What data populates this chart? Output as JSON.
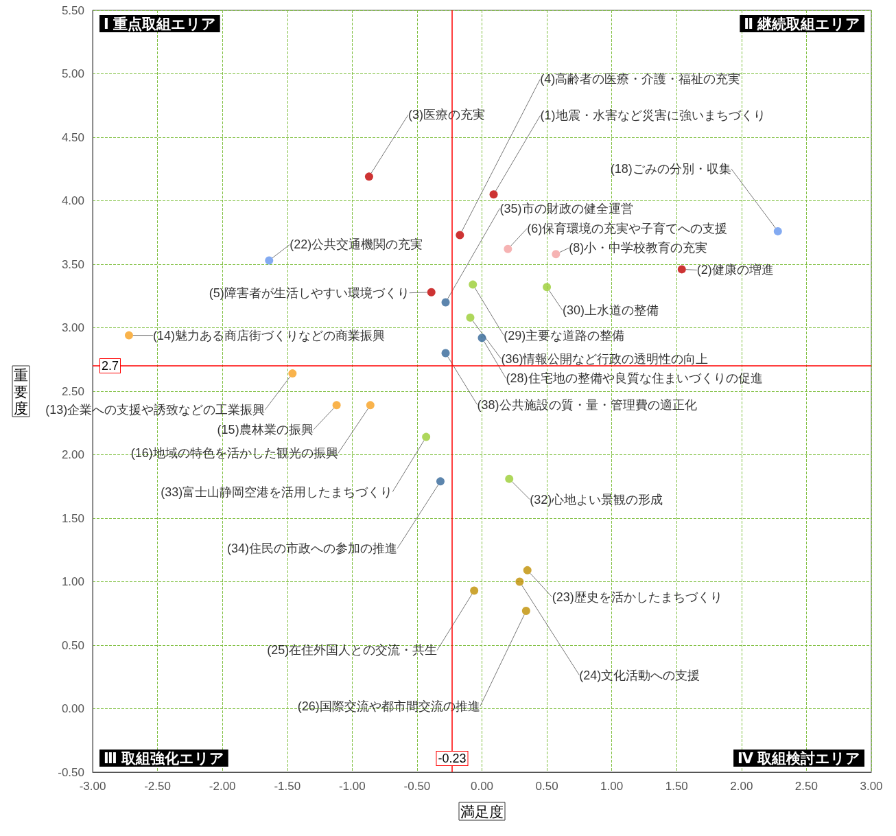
{
  "chart_data": {
    "type": "scatter",
    "xlabel": "満足度",
    "ylabel": "重要度",
    "xlim": [
      -3,
      3
    ],
    "ylim": [
      -0.5,
      5.5
    ],
    "xticks": [
      {
        "value": -3,
        "label": "-3.00"
      },
      {
        "value": -2.5,
        "label": "-2.50"
      },
      {
        "value": -2,
        "label": "-2.00"
      },
      {
        "value": -1.5,
        "label": "-1.50"
      },
      {
        "value": -1,
        "label": "-1.00"
      },
      {
        "value": -0.5,
        "label": "-0.50"
      },
      {
        "value": 0,
        "label": "0.00"
      },
      {
        "value": 0.5,
        "label": "0.50"
      },
      {
        "value": 1,
        "label": "1.00"
      },
      {
        "value": 1.5,
        "label": "1.50"
      },
      {
        "value": 2,
        "label": "2.00"
      },
      {
        "value": 2.5,
        "label": "2.50"
      },
      {
        "value": 3,
        "label": "3.00"
      }
    ],
    "yticks": [
      {
        "value": -0.5,
        "label": "-0.50"
      },
      {
        "value": 0,
        "label": "0.00"
      },
      {
        "value": 0.5,
        "label": "0.50"
      },
      {
        "value": 1,
        "label": "1.00"
      },
      {
        "value": 1.5,
        "label": "1.50"
      },
      {
        "value": 2,
        "label": "2.00"
      },
      {
        "value": 2.5,
        "label": "2.50"
      },
      {
        "value": 3,
        "label": "3.00"
      },
      {
        "value": 3.5,
        "label": "3.50"
      },
      {
        "value": 4,
        "label": "4.00"
      },
      {
        "value": 4.5,
        "label": "4.50"
      },
      {
        "value": 5,
        "label": "5.00"
      },
      {
        "value": 5.5,
        "label": "5.50"
      }
    ],
    "grid": true,
    "legend": false,
    "marker": "circle",
    "ref_lines": [
      {
        "axis": "x",
        "value": -0.23,
        "label": "-0.23",
        "color": "#ff0000"
      },
      {
        "axis": "y",
        "value": 2.7,
        "label": "2.7",
        "color": "#ff0000"
      }
    ],
    "annotations": [
      "Ⅰ 重点取組エリア",
      "Ⅱ 継続取組エリア",
      "Ⅲ 取組強化エリア",
      "Ⅳ 取組検討エリア"
    ],
    "series": [
      {
        "name": "(3)医療の充実",
        "color": "#c00000",
        "x": [
          -0.87
        ],
        "values": [
          4.19
        ]
      },
      {
        "name": "(4)高齢者の医療・介護・福祉の充実",
        "color": "#c00000",
        "x": [
          -0.17
        ],
        "values": [
          3.73
        ]
      },
      {
        "name": "(1)地震・水害など災害に強いまちづくり",
        "color": "#c00000",
        "x": [
          0.09
        ],
        "values": [
          4.05
        ]
      },
      {
        "name": "(18)ごみの分別・収集",
        "color": "#6495ed",
        "x": [
          2.28
        ],
        "values": [
          3.76
        ]
      },
      {
        "name": "(35)市の財政の健全運営",
        "color": "#336699",
        "x": [
          -0.28
        ],
        "values": [
          3.2
        ]
      },
      {
        "name": "(6)保育環境の充実や子育てへの支援",
        "color": "#f4a0a0",
        "x": [
          0.2
        ],
        "values": [
          3.62
        ]
      },
      {
        "name": "(8)小・中学校教育の充実",
        "color": "#f4a0a0",
        "x": [
          0.57
        ],
        "values": [
          3.58
        ]
      },
      {
        "name": "(2)健康の増進",
        "color": "#c00000",
        "x": [
          1.54
        ],
        "values": [
          3.46
        ]
      },
      {
        "name": "(22)公共交通機関の充実",
        "color": "#6495ed",
        "x": [
          -1.64
        ],
        "values": [
          3.53
        ]
      },
      {
        "name": "(5)障害者が生活しやすい環境づくり",
        "color": "#c00000",
        "x": [
          -0.39
        ],
        "values": [
          3.28
        ]
      },
      {
        "name": "(30)上水道の整備",
        "color": "#9acd32",
        "x": [
          0.5
        ],
        "values": [
          3.32
        ]
      },
      {
        "name": "(29)主要な道路の整備",
        "color": "#9acd32",
        "x": [
          -0.07
        ],
        "values": [
          3.34
        ]
      },
      {
        "name": "(14)魅力ある商店街づくりなどの商業振興",
        "color": "#f7a01f",
        "x": [
          -2.72
        ],
        "values": [
          2.94
        ]
      },
      {
        "name": "(36)情報公開など行政の透明性の向上",
        "color": "#9acd32",
        "x": [
          -0.09
        ],
        "values": [
          3.08
        ]
      },
      {
        "name": "(28)住宅地の整備や良質な住まいづくりの促進",
        "color": "#336699",
        "x": [
          0.0
        ],
        "values": [
          2.92
        ]
      },
      {
        "name": "(38)公共施設の質・量・管理費の適正化",
        "color": "#336699",
        "x": [
          -0.28
        ],
        "values": [
          2.8
        ]
      },
      {
        "name": "(13)企業への支援や誘致などの工業振興",
        "color": "#f7a01f",
        "x": [
          -1.46
        ],
        "values": [
          2.64
        ]
      },
      {
        "name": "(15)農林業の振興",
        "color": "#f7a01f",
        "x": [
          -1.12
        ],
        "values": [
          2.39
        ]
      },
      {
        "name": "(16)地域の特色を活かした観光の振興",
        "color": "#f7a01f",
        "x": [
          -0.86
        ],
        "values": [
          2.39
        ]
      },
      {
        "name": "(33)富士山静岡空港を活用したまちづくり",
        "color": "#9acd32",
        "x": [
          -0.43
        ],
        "values": [
          2.14
        ]
      },
      {
        "name": "(34)住民の市政への参加の推進",
        "color": "#336699",
        "x": [
          -0.32
        ],
        "values": [
          1.79
        ]
      },
      {
        "name": "(32)心地よい景観の形成",
        "color": "#9acd32",
        "x": [
          0.21
        ],
        "values": [
          1.81
        ]
      },
      {
        "name": "(23)歴史を活かしたまちづくり",
        "color": "#bf8f00",
        "x": [
          0.35
        ],
        "values": [
          1.09
        ]
      },
      {
        "name": "(24)文化活動への支援",
        "color": "#bf8f00",
        "x": [
          0.29
        ],
        "values": [
          1.0
        ]
      },
      {
        "name": "(25)在住外国人との交流・共生",
        "color": "#bf8f00",
        "x": [
          -0.06
        ],
        "values": [
          0.93
        ]
      },
      {
        "name": "(26)国際交流や都市間交流の推進",
        "color": "#bf8f00",
        "x": [
          0.34
        ],
        "values": [
          0.77
        ]
      }
    ]
  }
}
